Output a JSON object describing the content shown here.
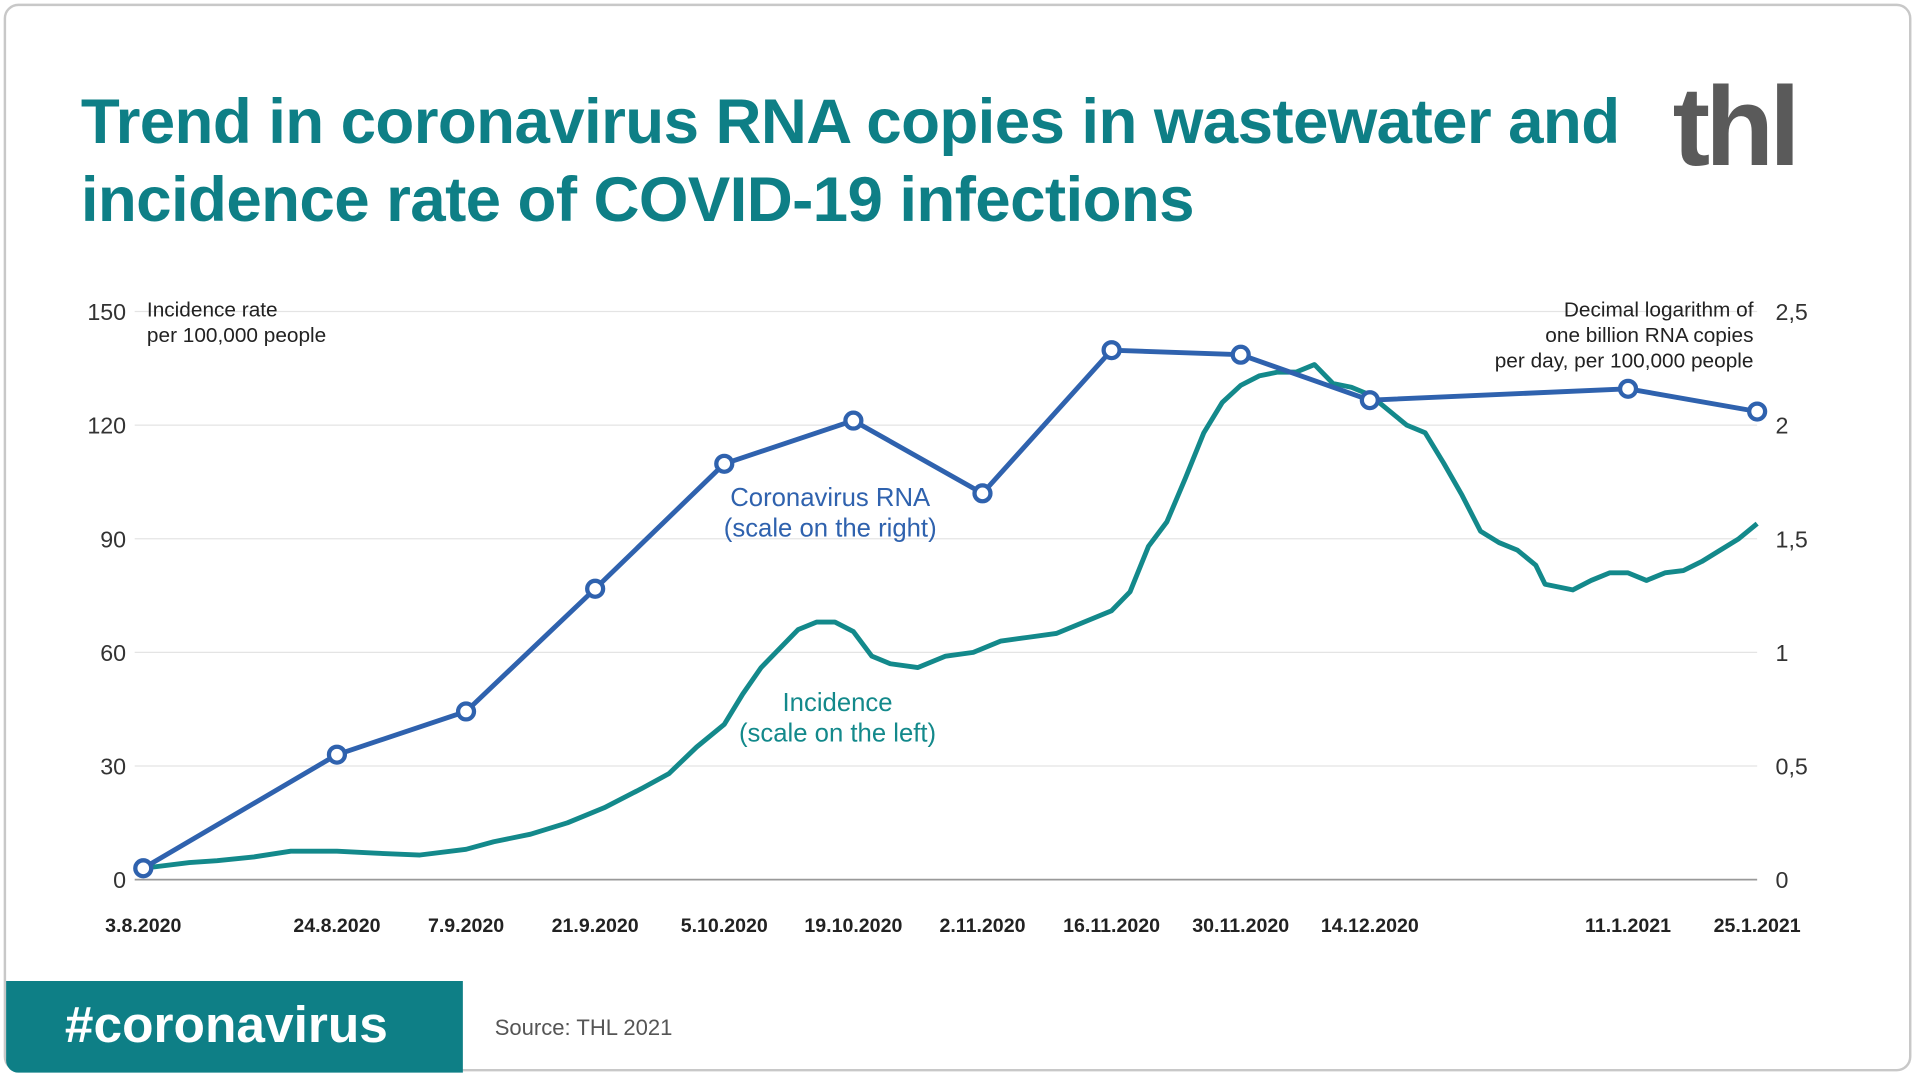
{
  "title": "Trend in coronavirus RNA copies in wastewater and incidence rate of COVID-19 infections",
  "logo": "thl",
  "hashtag": "#coronavirus",
  "source": "Source: THL 2021",
  "colors": {
    "title": "#0e7f86",
    "rna": "#2f62ae",
    "incidence": "#13898b",
    "banner": "#0e7f86"
  },
  "chart_data": {
    "type": "line",
    "title": "Trend in coronavirus RNA copies in wastewater and incidence rate of COVID-19 infections",
    "ylabel_left": [
      "Incidence rate",
      "per 100,000 people"
    ],
    "ylabel_right": [
      "Decimal logarithm of",
      "one billion RNA copies",
      "per day, per 100,000 people"
    ],
    "ylim_left": [
      0,
      150
    ],
    "ylim_right": [
      0,
      2.5
    ],
    "yticks_left": [
      "0",
      "30",
      "60",
      "90",
      "120",
      "150"
    ],
    "yticks_right": [
      "0",
      "0,5",
      "1",
      "1,5",
      "2",
      "2,5"
    ],
    "xlim": [
      "3.8.2020",
      "25.1.2021"
    ],
    "xticks": [
      "3.8.2020",
      "24.8.2020",
      "7.9.2020",
      "21.9.2020",
      "5.10.2020",
      "19.10.2020",
      "2.11.2020",
      "16.11.2020",
      "30.11.2020",
      "14.12.2020",
      "11.1.2021",
      "25.1.2021"
    ],
    "grid": true,
    "series": [
      {
        "name": "Coronavirus RNA",
        "label": [
          "Coronavirus RNA",
          "(scale on the right)"
        ],
        "axis": "right",
        "markers": true,
        "points": [
          {
            "date": "3.8.2020",
            "value": 0.05
          },
          {
            "date": "24.8.2020",
            "value": 0.55
          },
          {
            "date": "7.9.2020",
            "value": 0.74
          },
          {
            "date": "21.9.2020",
            "value": 1.28
          },
          {
            "date": "5.10.2020",
            "value": 1.83
          },
          {
            "date": "19.10.2020",
            "value": 2.02
          },
          {
            "date": "2.11.2020",
            "value": 1.7
          },
          {
            "date": "16.11.2020",
            "value": 2.33
          },
          {
            "date": "30.11.2020",
            "value": 2.31
          },
          {
            "date": "14.12.2020",
            "value": 2.11
          },
          {
            "date": "11.1.2021",
            "value": 2.16
          },
          {
            "date": "25.1.2021",
            "value": 2.06
          }
        ]
      },
      {
        "name": "Incidence",
        "label": [
          "Incidence",
          "(scale on the left)"
        ],
        "axis": "left",
        "markers": false,
        "points": [
          {
            "date": "3.8.2020",
            "value": 3
          },
          {
            "date": "8.8.2020",
            "value": 4.5
          },
          {
            "date": "11.8.2020",
            "value": 5
          },
          {
            "date": "15.8.2020",
            "value": 6
          },
          {
            "date": "19.8.2020",
            "value": 7.5
          },
          {
            "date": "24.8.2020",
            "value": 7.5
          },
          {
            "date": "28.8.2020",
            "value": 7
          },
          {
            "date": "2.9.2020",
            "value": 6.5
          },
          {
            "date": "7.9.2020",
            "value": 8
          },
          {
            "date": "10.9.2020",
            "value": 10
          },
          {
            "date": "14.9.2020",
            "value": 12
          },
          {
            "date": "18.9.2020",
            "value": 15
          },
          {
            "date": "22.9.2020",
            "value": 19
          },
          {
            "date": "26.9.2020",
            "value": 24
          },
          {
            "date": "29.9.2020",
            "value": 28
          },
          {
            "date": "2.10.2020",
            "value": 35
          },
          {
            "date": "5.10.2020",
            "value": 41
          },
          {
            "date": "7.10.2020",
            "value": 49
          },
          {
            "date": "9.10.2020",
            "value": 56
          },
          {
            "date": "11.10.2020",
            "value": 61
          },
          {
            "date": "13.10.2020",
            "value": 66
          },
          {
            "date": "15.10.2020",
            "value": 68
          },
          {
            "date": "17.10.2020",
            "value": 68
          },
          {
            "date": "19.10.2020",
            "value": 65.5
          },
          {
            "date": "21.10.2020",
            "value": 59
          },
          {
            "date": "23.10.2020",
            "value": 57
          },
          {
            "date": "26.10.2020",
            "value": 56
          },
          {
            "date": "29.10.2020",
            "value": 59
          },
          {
            "date": "1.11.2020",
            "value": 60
          },
          {
            "date": "4.11.2020",
            "value": 63
          },
          {
            "date": "7.11.2020",
            "value": 64
          },
          {
            "date": "10.11.2020",
            "value": 65
          },
          {
            "date": "13.11.2020",
            "value": 68
          },
          {
            "date": "16.11.2020",
            "value": 71
          },
          {
            "date": "18.11.2020",
            "value": 76
          },
          {
            "date": "20.11.2020",
            "value": 88
          },
          {
            "date": "22.11.2020",
            "value": 94.5
          },
          {
            "date": "24.11.2020",
            "value": 106
          },
          {
            "date": "26.11.2020",
            "value": 118
          },
          {
            "date": "28.11.2020",
            "value": 126
          },
          {
            "date": "30.11.2020",
            "value": 130.5
          },
          {
            "date": "2.12.2020",
            "value": 133
          },
          {
            "date": "4.12.2020",
            "value": 134
          },
          {
            "date": "6.12.2020",
            "value": 134
          },
          {
            "date": "8.12.2020",
            "value": 136
          },
          {
            "date": "10.12.2020",
            "value": 131
          },
          {
            "date": "12.12.2020",
            "value": 130
          },
          {
            "date": "14.12.2020",
            "value": 128
          },
          {
            "date": "16.12.2020",
            "value": 124
          },
          {
            "date": "18.12.2020",
            "value": 120
          },
          {
            "date": "20.12.2020",
            "value": 118
          },
          {
            "date": "22.12.2020",
            "value": 110
          },
          {
            "date": "24.12.2020",
            "value": 101.5
          },
          {
            "date": "26.12.2020",
            "value": 92
          },
          {
            "date": "28.12.2020",
            "value": 89
          },
          {
            "date": "30.12.2020",
            "value": 87
          },
          {
            "date": "1.1.2021",
            "value": 83
          },
          {
            "date": "2.1.2021",
            "value": 78
          },
          {
            "date": "5.1.2021",
            "value": 76.5
          },
          {
            "date": "7.1.2021",
            "value": 79
          },
          {
            "date": "9.1.2021",
            "value": 81
          },
          {
            "date": "11.1.2021",
            "value": 81
          },
          {
            "date": "13.1.2021",
            "value": 79
          },
          {
            "date": "15.1.2021",
            "value": 81
          },
          {
            "date": "17.1.2021",
            "value": 81.6
          },
          {
            "date": "19.1.2021",
            "value": 84
          },
          {
            "date": "21.1.2021",
            "value": 87
          },
          {
            "date": "23.1.2021",
            "value": 90
          },
          {
            "date": "25.1.2021",
            "value": 94
          }
        ]
      }
    ]
  }
}
